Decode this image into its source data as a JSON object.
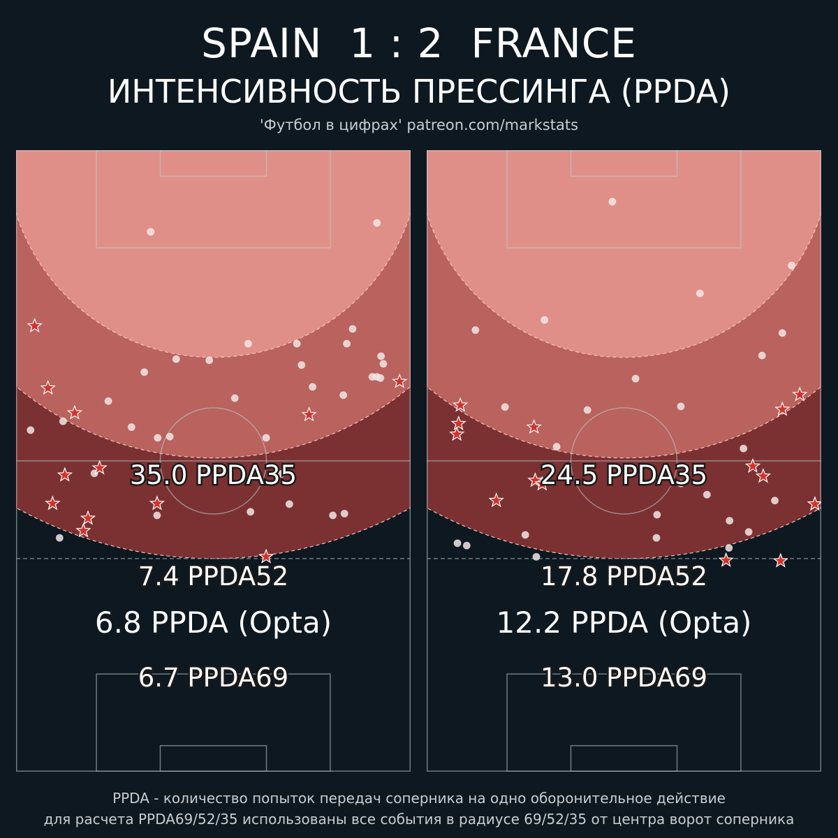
{
  "header": {
    "title": "SPAIN  1 : 2  FRANCE",
    "subtitle": "ИНТЕНСИВНОСТЬ ПРЕССИНГА (PPDA)",
    "credit": "'Футбол в цифрах' patreon.com/markstats"
  },
  "footer": {
    "line1": "PPDA - количество попыток передач соперника на одно оборонительное действие",
    "line2": "для расчета PPDA69/52/35 использованы все события в радиусе 69/52/35 от центра ворот соперника"
  },
  "colors": {
    "background": "#0e1820",
    "zone35": "#e08f88",
    "zone52": "#b9625e",
    "zone69": "#7b3132",
    "star": "#d2322b",
    "dot": "#f2e6e4"
  },
  "chart_data": [
    {
      "type": "scatter",
      "team": "SPAIN",
      "pitch_m": [
        68,
        105
      ],
      "radii_m": [
        35,
        52,
        69
      ],
      "labels": {
        "ppda35": "35.0 PPDA35",
        "ppda52": "7.4 PPDA52",
        "ppda69": "6.7 PPDA69",
        "opta": "6.8 PPDA (Opta)"
      },
      "ppda": {
        "r35": 35.0,
        "r52": 7.4,
        "r69": 6.7,
        "opta": 6.8
      },
      "passes": [
        [
          23.2,
          13.8
        ],
        [
          62.2,
          12.3
        ],
        [
          58.0,
          30.2
        ],
        [
          57.0,
          32.7
        ],
        [
          48.4,
          32.7
        ],
        [
          40.0,
          32.7
        ],
        [
          27.6,
          35.3
        ],
        [
          33.3,
          35.5
        ],
        [
          49.2,
          36.3
        ],
        [
          62.9,
          34.8
        ],
        [
          63.3,
          36.1
        ],
        [
          61.4,
          38.3
        ],
        [
          62.2,
          38.3
        ],
        [
          62.8,
          38.5
        ],
        [
          22.1,
          37.5
        ],
        [
          51.1,
          40.0
        ],
        [
          56.4,
          41.4
        ],
        [
          37.7,
          41.9
        ],
        [
          15.9,
          42.4
        ],
        [
          8.1,
          45.8
        ],
        [
          2.5,
          47.3
        ],
        [
          19.9,
          46.8
        ],
        [
          24.4,
          48.6
        ],
        [
          26.5,
          48.4
        ],
        [
          43.1,
          48.6
        ],
        [
          13.5,
          54.6
        ],
        [
          45.7,
          54.7
        ],
        [
          47.1,
          59.8
        ],
        [
          40.4,
          61.1
        ],
        [
          54.6,
          61.7
        ],
        [
          56.6,
          61.4
        ],
        [
          7.5,
          65.5
        ],
        [
          24.3,
          61.7
        ]
      ],
      "defensive_actions": [
        [
          3.2,
          29.7
        ],
        [
          5.5,
          40.2
        ],
        [
          10.1,
          44.4
        ],
        [
          14.4,
          53.7
        ],
        [
          8.4,
          54.9
        ],
        [
          6.3,
          59.7
        ],
        [
          24.3,
          59.7
        ],
        [
          12.4,
          62.2
        ],
        [
          11.6,
          64.3
        ],
        [
          50.5,
          44.7
        ],
        [
          66.1,
          39.1
        ],
        [
          43.1,
          68.7
        ]
      ]
    },
    {
      "type": "scatter",
      "team": "FRANCE",
      "pitch_m": [
        68,
        105
      ],
      "radii_m": [
        35,
        52,
        69
      ],
      "labels": {
        "ppda35": "24.5 PPDA35",
        "ppda52": "17.8 PPDA52",
        "ppda69": "13.0 PPDA69",
        "opta": "12.2 PPDA (Opta)"
      },
      "ppda": {
        "r35": 24.5,
        "r52": 17.8,
        "r69": 13.0,
        "opta": 12.2
      },
      "passes": [
        [
          32.0,
          8.7
        ],
        [
          62.9,
          19.5
        ],
        [
          47.1,
          24.2
        ],
        [
          8.4,
          30.4
        ],
        [
          20.3,
          28.7
        ],
        [
          61.3,
          30.9
        ],
        [
          57.8,
          34.7
        ],
        [
          36.0,
          38.6
        ],
        [
          13.5,
          43.4
        ],
        [
          27.7,
          43.9
        ],
        [
          43.8,
          43.3
        ],
        [
          22.4,
          50.1
        ],
        [
          54.6,
          50.4
        ],
        [
          43.8,
          56.3
        ],
        [
          48.3,
          58.2
        ],
        [
          60.0,
          59.2
        ],
        [
          39.7,
          61.6
        ],
        [
          52.2,
          62.6
        ],
        [
          55.5,
          64.5
        ],
        [
          17.0,
          65.0
        ],
        [
          39.6,
          65.5
        ],
        [
          52.1,
          67.2
        ],
        [
          5.3,
          66.4
        ],
        [
          6.9,
          66.8
        ],
        [
          18.9,
          68.7
        ]
      ],
      "defensive_actions": [
        [
          5.8,
          43.1
        ],
        [
          5.5,
          46.2
        ],
        [
          5.2,
          48.0
        ],
        [
          18.5,
          46.8
        ],
        [
          64.3,
          41.3
        ],
        [
          61.3,
          43.8
        ],
        [
          56.2,
          53.4
        ],
        [
          58.0,
          55.1
        ],
        [
          18.7,
          55.8
        ],
        [
          19.9,
          56.4
        ],
        [
          12.0,
          59.2
        ],
        [
          66.9,
          59.8
        ],
        [
          51.6,
          69.3
        ],
        [
          61.0,
          69.4
        ]
      ]
    }
  ]
}
